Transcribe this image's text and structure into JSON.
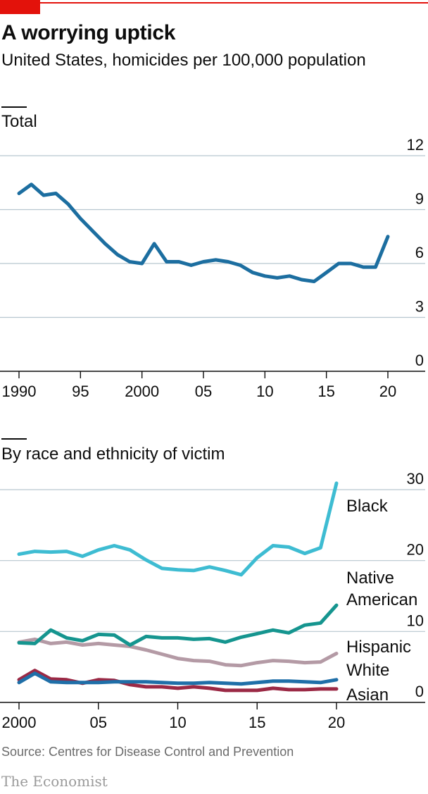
{
  "header": {
    "title": "A worrying uptick",
    "subtitle": "United States, homicides per 100,000 population"
  },
  "colors": {
    "accent": "#e3120b",
    "grid": "#b7c6cf",
    "axis": "#0d0d0d",
    "total": "#1c6ea0",
    "black": "#3ebcd2",
    "native_american": "#15958f",
    "hispanic": "#b49aa5",
    "white": "#1f6fa8",
    "asian": "#9b2945"
  },
  "chart_data": [
    {
      "type": "line",
      "title": "Total",
      "x_ticks": [
        "1990",
        "95",
        "2000",
        "05",
        "10",
        "15",
        "20"
      ],
      "x_tick_values": [
        1990,
        1995,
        2000,
        2005,
        2010,
        2015,
        2020
      ],
      "y_ticks": [
        "12",
        "9",
        "6",
        "3",
        "0"
      ],
      "y_tick_values": [
        12,
        9,
        6,
        3,
        0
      ],
      "xlim": [
        1990,
        2020
      ],
      "ylim": [
        0,
        12
      ],
      "grid": true,
      "series": [
        {
          "key": "total",
          "x": [
            1990,
            1991,
            1992,
            1993,
            1994,
            1995,
            1996,
            1997,
            1998,
            1999,
            2000,
            2001,
            2002,
            2003,
            2004,
            2005,
            2006,
            2007,
            2008,
            2009,
            2010,
            2011,
            2012,
            2013,
            2014,
            2015,
            2016,
            2017,
            2018,
            2019,
            2020
          ],
          "values": [
            9.9,
            10.4,
            9.8,
            9.9,
            9.3,
            8.5,
            7.8,
            7.1,
            6.5,
            6.1,
            6.0,
            7.1,
            6.1,
            6.1,
            5.9,
            6.1,
            6.2,
            6.1,
            5.9,
            5.5,
            5.3,
            5.2,
            5.3,
            5.1,
            5.0,
            5.5,
            6.0,
            6.0,
            5.8,
            5.8,
            7.5
          ]
        }
      ]
    },
    {
      "type": "line",
      "title": "By race and ethnicity of victim",
      "x_ticks": [
        "2000",
        "05",
        "10",
        "15",
        "20"
      ],
      "x_tick_values": [
        2000,
        2005,
        2010,
        2015,
        2020
      ],
      "y_ticks": [
        "30",
        "20",
        "10",
        "0"
      ],
      "y_tick_values": [
        30,
        20,
        10,
        0
      ],
      "xlim": [
        2000,
        2020
      ],
      "ylim": [
        0,
        30
      ],
      "grid": true,
      "series": [
        {
          "key": "black",
          "name": "Black",
          "x": [
            2000,
            2001,
            2002,
            2003,
            2004,
            2005,
            2006,
            2007,
            2008,
            2009,
            2010,
            2011,
            2012,
            2013,
            2014,
            2015,
            2016,
            2017,
            2018,
            2019,
            2020
          ],
          "values": [
            20.9,
            21.3,
            21.2,
            21.3,
            20.6,
            21.5,
            22.1,
            21.5,
            20.1,
            18.9,
            18.7,
            18.6,
            19.1,
            18.6,
            18.0,
            20.4,
            22.1,
            21.9,
            21.0,
            21.8,
            30.9
          ]
        },
        {
          "key": "native_american",
          "name": "Native American",
          "x": [
            2000,
            2001,
            2002,
            2003,
            2004,
            2005,
            2006,
            2007,
            2008,
            2009,
            2010,
            2011,
            2012,
            2013,
            2014,
            2015,
            2016,
            2017,
            2018,
            2019,
            2020
          ],
          "values": [
            8.4,
            8.3,
            10.2,
            9.1,
            8.7,
            9.6,
            9.5,
            8.1,
            9.3,
            9.1,
            9.1,
            8.9,
            9.0,
            8.5,
            9.2,
            9.7,
            10.2,
            9.8,
            10.9,
            11.2,
            13.7
          ]
        },
        {
          "key": "hispanic",
          "name": "Hispanic",
          "x": [
            2000,
            2001,
            2002,
            2003,
            2004,
            2005,
            2006,
            2007,
            2008,
            2009,
            2010,
            2011,
            2012,
            2013,
            2014,
            2015,
            2016,
            2017,
            2018,
            2019,
            2020
          ],
          "values": [
            8.5,
            8.9,
            8.3,
            8.5,
            8.1,
            8.3,
            8.1,
            7.9,
            7.4,
            6.8,
            6.2,
            5.9,
            5.8,
            5.3,
            5.2,
            5.6,
            5.9,
            5.8,
            5.6,
            5.7,
            6.9
          ]
        },
        {
          "key": "white",
          "name": "White",
          "x": [
            2000,
            2001,
            2002,
            2003,
            2004,
            2005,
            2006,
            2007,
            2008,
            2009,
            2010,
            2011,
            2012,
            2013,
            2014,
            2015,
            2016,
            2017,
            2018,
            2019,
            2020
          ],
          "values": [
            2.8,
            4.1,
            2.9,
            2.8,
            2.8,
            2.8,
            2.9,
            2.9,
            2.9,
            2.8,
            2.7,
            2.7,
            2.8,
            2.7,
            2.6,
            2.8,
            3.0,
            3.0,
            2.9,
            2.8,
            3.2
          ]
        },
        {
          "key": "asian",
          "name": "Asian",
          "x": [
            2000,
            2001,
            2002,
            2003,
            2004,
            2005,
            2006,
            2007,
            2008,
            2009,
            2010,
            2011,
            2012,
            2013,
            2014,
            2015,
            2016,
            2017,
            2018,
            2019,
            2020
          ],
          "values": [
            3.2,
            4.5,
            3.3,
            3.2,
            2.7,
            3.2,
            3.1,
            2.5,
            2.2,
            2.2,
            2.0,
            2.2,
            2.0,
            1.7,
            1.7,
            1.7,
            2.0,
            1.8,
            1.8,
            1.9,
            1.9
          ]
        }
      ]
    }
  ],
  "footer": {
    "source": "Source: Centres for Disease Control and Prevention",
    "brand": "The Economist"
  }
}
